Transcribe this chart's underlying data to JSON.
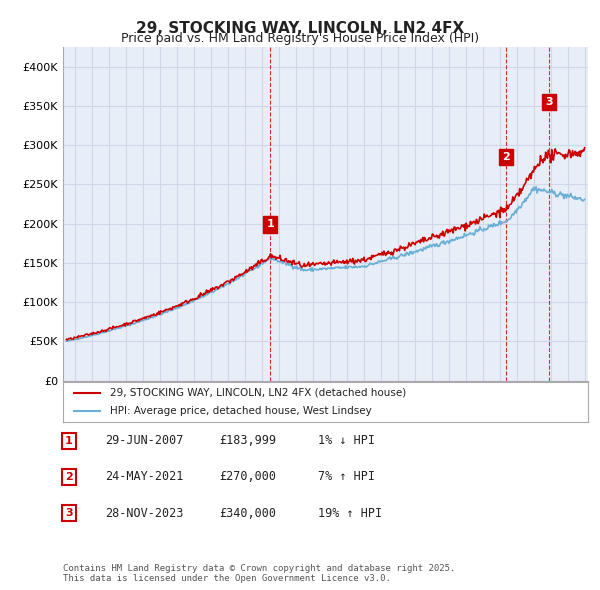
{
  "title": "29, STOCKING WAY, LINCOLN, LN2 4FX",
  "subtitle": "Price paid vs. HM Land Registry's House Price Index (HPI)",
  "ylim": [
    0,
    425000
  ],
  "xlim_start": 1995.3,
  "xlim_end": 2026.2,
  "hpi_color": "#6baed6",
  "price_color": "#cc0000",
  "grid_color": "#d0d8e8",
  "bg_color": "#e8eef8",
  "legend_label_red": "29, STOCKING WAY, LINCOLN, LN2 4FX (detached house)",
  "legend_label_blue": "HPI: Average price, detached house, West Lindsey",
  "transaction_years": [
    2007.49,
    2021.39,
    2023.91
  ],
  "transaction_prices": [
    183999,
    270000,
    340000
  ],
  "transaction_labels": [
    "1",
    "2",
    "3"
  ],
  "table_rows": [
    {
      "num": "1",
      "date": "29-JUN-2007",
      "price": "£183,999",
      "pct": "1% ↓ HPI"
    },
    {
      "num": "2",
      "date": "24-MAY-2021",
      "price": "£270,000",
      "pct": "7% ↑ HPI"
    },
    {
      "num": "3",
      "date": "28-NOV-2023",
      "price": "£340,000",
      "pct": "19% ↑ HPI"
    }
  ],
  "footer": "Contains HM Land Registry data © Crown copyright and database right 2025.\nThis data is licensed under the Open Government Licence v3.0.",
  "vline_color": "#cc0000"
}
